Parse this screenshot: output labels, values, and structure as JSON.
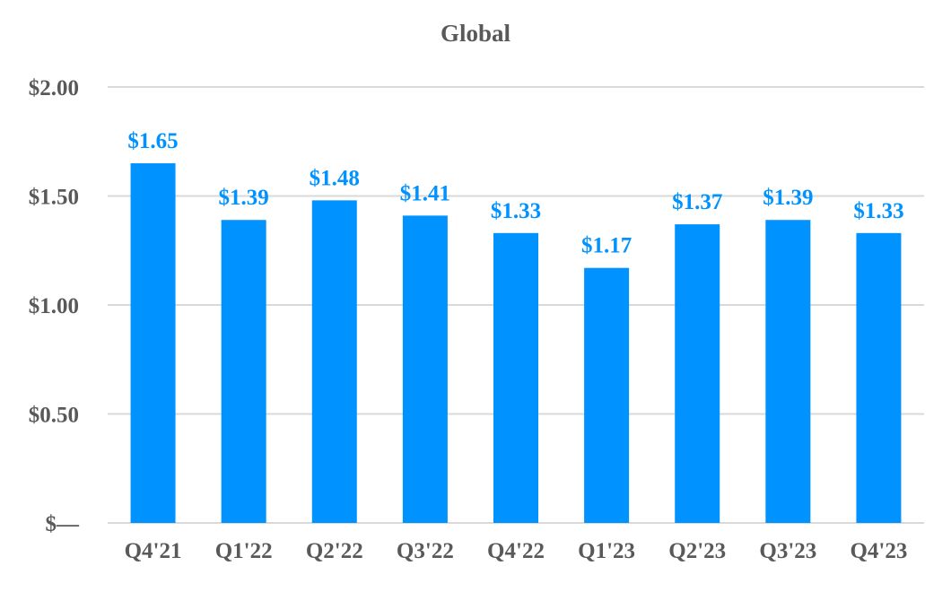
{
  "chart_data": {
    "type": "bar",
    "title": "Global",
    "xlabel": "",
    "ylabel": "",
    "categories": [
      "Q4'21",
      "Q1'22",
      "Q2'22",
      "Q3'22",
      "Q4'22",
      "Q1'23",
      "Q2'23",
      "Q3'23",
      "Q4'23"
    ],
    "values": [
      1.65,
      1.39,
      1.48,
      1.41,
      1.33,
      1.17,
      1.37,
      1.39,
      1.33
    ],
    "data_labels": [
      "$1.65",
      "$1.39",
      "$1.48",
      "$1.41",
      "$1.33",
      "$1.17",
      "$1.37",
      "$1.39",
      "$1.33"
    ],
    "ylim": [
      0,
      2
    ],
    "yticks": [
      0,
      0.5,
      1,
      1.5,
      2
    ],
    "ytick_labels": [
      "$—",
      "$0.50",
      "$1.00",
      "$1.50",
      "$2.00"
    ],
    "grid": true,
    "legend": "none",
    "colors": {
      "bar": "#0093FF",
      "data_label": "#0093FF",
      "axis_text": "#595959",
      "title": "#595959",
      "grid": "#D9D9D9"
    }
  }
}
